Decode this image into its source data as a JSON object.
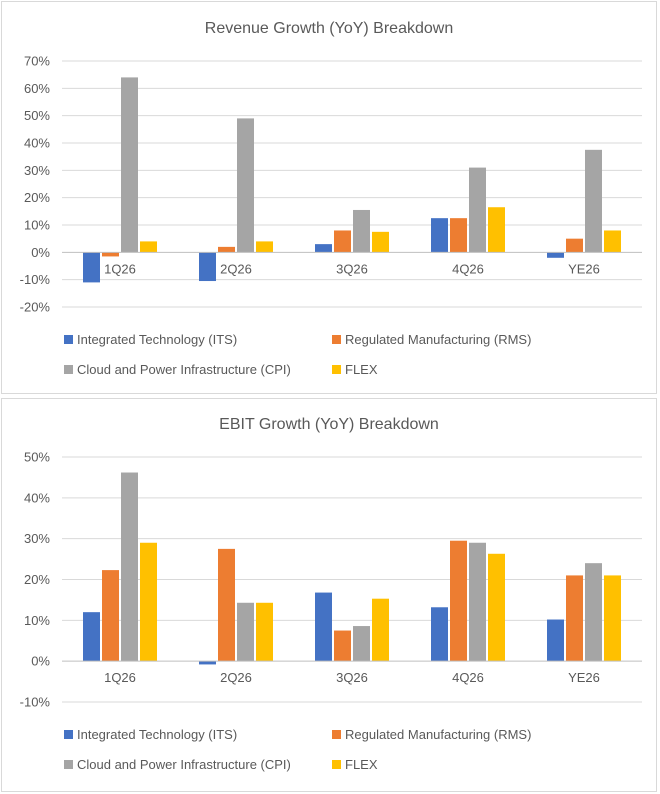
{
  "colors": {
    "ITS": "#4472C4",
    "RMS": "#ED7D31",
    "CPI": "#A5A5A5",
    "FLEX": "#FFC000"
  },
  "chart_data": [
    {
      "type": "bar",
      "title": "Revenue Growth (YoY) Breakdown",
      "categories": [
        "1Q26",
        "2Q26",
        "3Q26",
        "4Q26",
        "YE26"
      ],
      "ylim": [
        -20,
        70
      ],
      "yticks": [
        "70%",
        "60%",
        "50%",
        "40%",
        "30%",
        "20%",
        "10%",
        "0%",
        "-10%",
        "-20%"
      ],
      "grid": true,
      "legend_position": "bottom",
      "series": [
        {
          "name": "Integrated Technology (ITS)",
          "key": "ITS",
          "values": [
            -11,
            -10.5,
            3,
            12.5,
            -2
          ]
        },
        {
          "name": "Regulated Manufacturing (RMS)",
          "key": "RMS",
          "values": [
            -1.5,
            2,
            8,
            12.5,
            5
          ]
        },
        {
          "name": "Cloud and Power Infrastructure (CPI)",
          "key": "CPI",
          "values": [
            64,
            49,
            15.5,
            31,
            37.5
          ]
        },
        {
          "name": "FLEX",
          "key": "FLEX",
          "values": [
            4,
            4,
            7.5,
            16.5,
            8
          ]
        }
      ]
    },
    {
      "type": "bar",
      "title": "EBIT Growth (YoY) Breakdown",
      "categories": [
        "1Q26",
        "2Q26",
        "3Q26",
        "4Q26",
        "YE26"
      ],
      "ylim": [
        -10,
        50
      ],
      "yticks": [
        "50%",
        "40%",
        "30%",
        "20%",
        "10%",
        "0%",
        "-10%"
      ],
      "grid": true,
      "legend_position": "bottom",
      "series": [
        {
          "name": "Integrated Technology (ITS)",
          "key": "ITS",
          "values": [
            12,
            -0.8,
            16.8,
            13.2,
            10.2
          ]
        },
        {
          "name": "Regulated Manufacturing (RMS)",
          "key": "RMS",
          "values": [
            22.3,
            27.5,
            7.5,
            29.5,
            21
          ]
        },
        {
          "name": "Cloud and Power Infrastructure (CPI)",
          "key": "CPI",
          "values": [
            46.2,
            14.3,
            8.6,
            29,
            24
          ]
        },
        {
          "name": "FLEX",
          "key": "FLEX",
          "values": [
            29,
            14.3,
            15.3,
            26.3,
            21
          ]
        }
      ]
    }
  ]
}
